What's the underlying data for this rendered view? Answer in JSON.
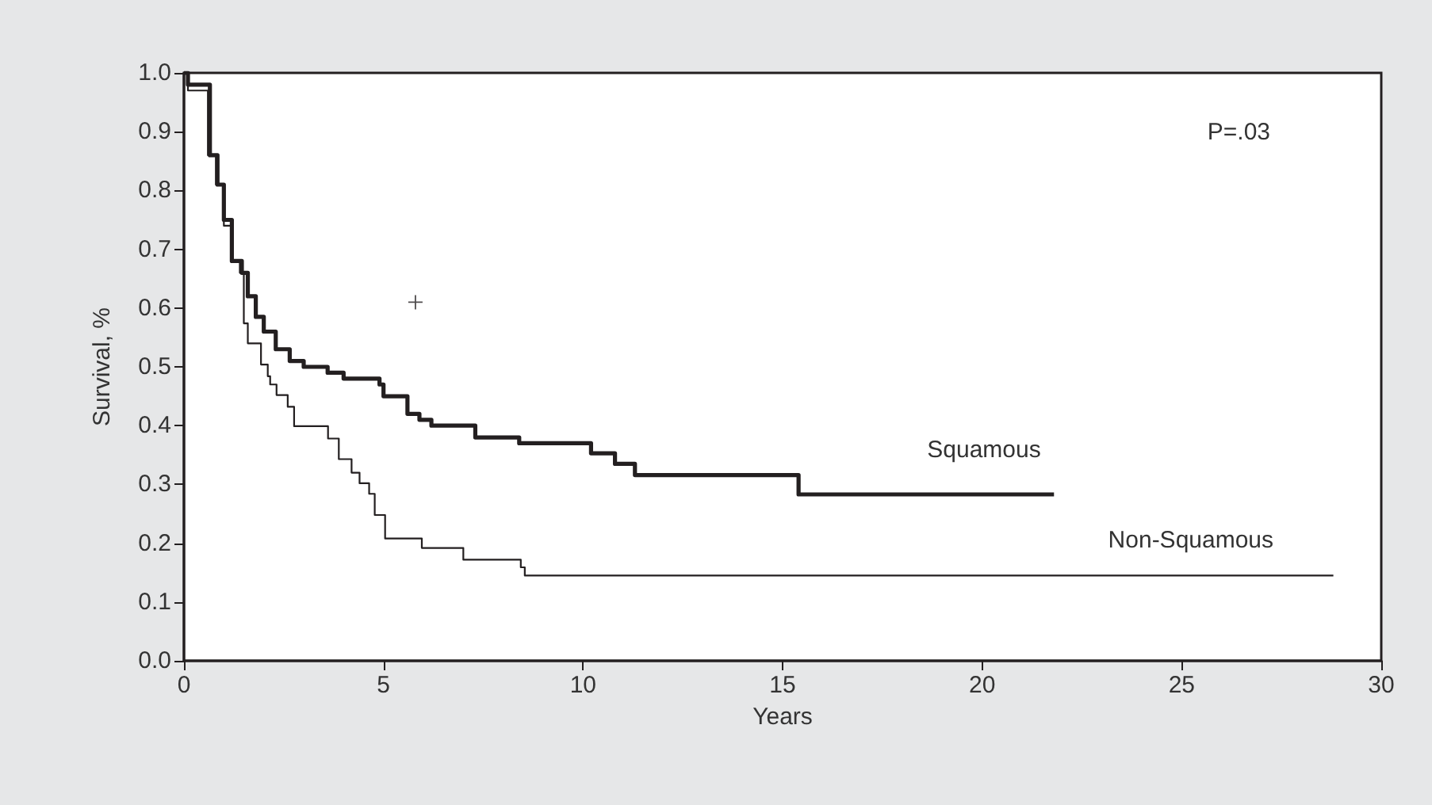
{
  "chart_data": {
    "type": "step",
    "xlabel": "Years",
    "ylabel": "Survival, %",
    "annotations": [
      "P=.03"
    ],
    "xlim": [
      0,
      30
    ],
    "xticks": [
      0,
      5,
      10,
      15,
      20,
      25,
      30
    ],
    "ylim": [
      0,
      1
    ],
    "yticks": [
      {
        "value": 0,
        "label": "0.0"
      },
      {
        "value": 0.1,
        "label": "0.1"
      },
      {
        "value": 0.2,
        "label": "0.2"
      },
      {
        "value": 0.3,
        "label": "0.3"
      },
      {
        "value": 0.4,
        "label": "0.4"
      },
      {
        "value": 0.5,
        "label": "0.5"
      },
      {
        "value": 0.6,
        "label": "0.6"
      },
      {
        "value": 0.7,
        "label": "0.7"
      },
      {
        "value": 0.8,
        "label": "0.8"
      },
      {
        "value": 0.9,
        "label": "0.9"
      },
      {
        "value": 1,
        "label": "1.0"
      }
    ],
    "grid": false,
    "legend": false,
    "marker": "none",
    "line_style": "solid",
    "series": [
      {
        "name": "Squamous",
        "color": "#231f20",
        "x": [
          0,
          0.1,
          0.65,
          0.84,
          1.0,
          1.2,
          1.45,
          1.6,
          1.8,
          2.0,
          2.3,
          2.65,
          3.0,
          3.6,
          4.0,
          4.9,
          5.0,
          5.6,
          5.9,
          6.2,
          7.3,
          8.4,
          10.2,
          10.8,
          11.3,
          15.4,
          21.8
        ],
        "values": [
          1.0,
          0.98,
          0.86,
          0.81,
          0.75,
          0.68,
          0.66,
          0.62,
          0.585,
          0.56,
          0.53,
          0.51,
          0.5,
          0.49,
          0.48,
          0.47,
          0.45,
          0.42,
          0.41,
          0.4,
          0.38,
          0.37,
          0.353,
          0.335,
          0.316,
          0.283,
          0.283
        ]
      },
      {
        "name": "Non-Squamous",
        "color": "#231f20",
        "x": [
          0,
          0.1,
          0.6,
          0.8,
          1.0,
          1.2,
          1.4,
          1.5,
          1.6,
          1.93,
          2.1,
          2.16,
          2.32,
          2.6,
          2.76,
          3.61,
          3.88,
          4.2,
          4.4,
          4.64,
          4.78,
          5.04,
          5.96,
          7.0,
          8.44,
          8.54,
          28.8
        ],
        "values": [
          1.0,
          0.97,
          0.86,
          0.81,
          0.74,
          0.68,
          0.66,
          0.574,
          0.54,
          0.504,
          0.484,
          0.47,
          0.452,
          0.432,
          0.399,
          0.378,
          0.343,
          0.32,
          0.302,
          0.284,
          0.248,
          0.208,
          0.192,
          0.172,
          0.159,
          0.145,
          0.145
        ]
      },
      {
        "type": "scatter",
        "marker": "cross",
        "color": "#231f20",
        "x": [
          5.8
        ],
        "values": [
          0.61
        ]
      }
    ]
  }
}
